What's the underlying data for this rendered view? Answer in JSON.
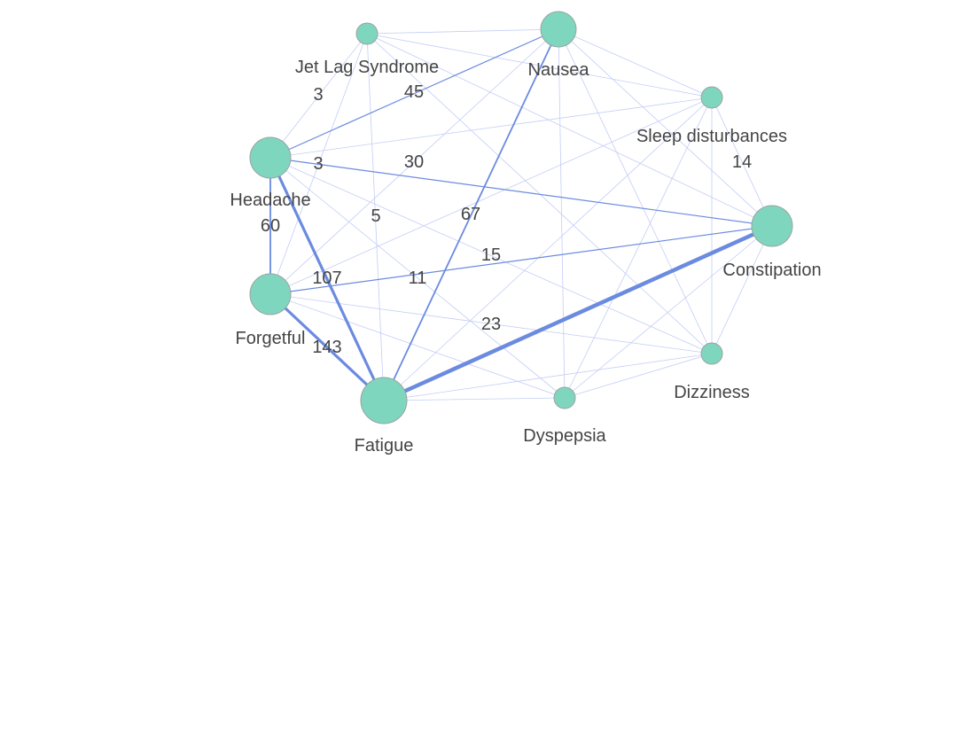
{
  "colors": {
    "node_fill": "#7fd6be",
    "node_stroke": "#9aa3a0",
    "edge_strong": "#6b8be0",
    "edge_weak": "#c3cdf5",
    "label_text": "#444444",
    "background": "#ffffff"
  },
  "graph": {
    "nodes": [
      {
        "id": "jetlag",
        "label": "Jet Lag Syndrome",
        "size": "small"
      },
      {
        "id": "nausea",
        "label": "Nausea",
        "size": "medium"
      },
      {
        "id": "sleep",
        "label": "Sleep disturbances",
        "size": "small"
      },
      {
        "id": "headache",
        "label": "Headache",
        "size": "large"
      },
      {
        "id": "constipation",
        "label": "Constipation",
        "size": "large"
      },
      {
        "id": "forgetful",
        "label": "Forgetful",
        "size": "large"
      },
      {
        "id": "dizziness",
        "label": "Dizziness",
        "size": "small"
      },
      {
        "id": "dyspepsia",
        "label": "Dyspepsia",
        "size": "small"
      },
      {
        "id": "fatigue",
        "label": "Fatigue",
        "size": "xlarge"
      }
    ],
    "edges": [
      {
        "source": "fatigue",
        "target": "constipation",
        "weight": 143,
        "label": "143",
        "strength": "strong"
      },
      {
        "source": "forgetful",
        "target": "fatigue",
        "weight": 107,
        "label": "107",
        "strength": "strong"
      },
      {
        "source": "headache",
        "target": "fatigue",
        "weight": 107,
        "label": "",
        "strength": "strong"
      },
      {
        "source": "fatigue",
        "target": "nausea",
        "weight": 67,
        "label": "67",
        "strength": "medium"
      },
      {
        "source": "headache",
        "target": "forgetful",
        "weight": 60,
        "label": "60",
        "strength": "medium"
      },
      {
        "source": "headache",
        "target": "nausea",
        "weight": 45,
        "label": "45",
        "strength": "medium"
      },
      {
        "source": "headache",
        "target": "constipation",
        "weight": 30,
        "label": "30",
        "strength": "medium"
      },
      {
        "source": "forgetful",
        "target": "constipation",
        "weight": 15,
        "label": "15",
        "strength": "medium"
      },
      {
        "source": "forgetful",
        "target": "dizziness",
        "weight": 23,
        "label": "23",
        "strength": "weak"
      },
      {
        "source": "jetlag",
        "target": "headache",
        "weight": 3,
        "label": "3",
        "strength": "weak"
      },
      {
        "source": "headache",
        "target": "sleep",
        "weight": 3,
        "label": "3",
        "strength": "weak"
      },
      {
        "source": "jetlag",
        "target": "fatigue",
        "weight": 5,
        "label": "5",
        "strength": "weak"
      },
      {
        "source": "headache",
        "target": "dyspepsia",
        "weight": 11,
        "label": "11",
        "strength": "weak"
      },
      {
        "source": "sleep",
        "target": "constipation",
        "weight": 14,
        "label": "14",
        "strength": "weak"
      },
      {
        "source": "jetlag",
        "target": "nausea",
        "weight": 1,
        "label": "",
        "strength": "weak"
      },
      {
        "source": "jetlag",
        "target": "sleep",
        "weight": 1,
        "label": "",
        "strength": "weak"
      },
      {
        "source": "jetlag",
        "target": "constipation",
        "weight": 1,
        "label": "",
        "strength": "weak"
      },
      {
        "source": "jetlag",
        "target": "dizziness",
        "weight": 1,
        "label": "",
        "strength": "weak"
      },
      {
        "source": "jetlag",
        "target": "forgetful",
        "weight": 1,
        "label": "",
        "strength": "weak"
      },
      {
        "source": "nausea",
        "target": "sleep",
        "weight": 1,
        "label": "",
        "strength": "weak"
      },
      {
        "source": "nausea",
        "target": "constipation",
        "weight": 1,
        "label": "",
        "strength": "weak"
      },
      {
        "source": "nausea",
        "target": "dyspepsia",
        "weight": 1,
        "label": "",
        "strength": "weak"
      },
      {
        "source": "nausea",
        "target": "dizziness",
        "weight": 1,
        "label": "",
        "strength": "weak"
      },
      {
        "source": "nausea",
        "target": "forgetful",
        "weight": 1,
        "label": "",
        "strength": "weak"
      },
      {
        "source": "sleep",
        "target": "dizziness",
        "weight": 1,
        "label": "",
        "strength": "weak"
      },
      {
        "source": "sleep",
        "target": "dyspepsia",
        "weight": 1,
        "label": "",
        "strength": "weak"
      },
      {
        "source": "sleep",
        "target": "fatigue",
        "weight": 1,
        "label": "",
        "strength": "weak"
      },
      {
        "source": "sleep",
        "target": "forgetful",
        "weight": 1,
        "label": "",
        "strength": "weak"
      },
      {
        "source": "headache",
        "target": "dizziness",
        "weight": 1,
        "label": "",
        "strength": "weak"
      },
      {
        "source": "constipation",
        "target": "dizziness",
        "weight": 1,
        "label": "",
        "strength": "weak"
      },
      {
        "source": "constipation",
        "target": "dyspepsia",
        "weight": 1,
        "label": "",
        "strength": "weak"
      },
      {
        "source": "forgetful",
        "target": "dyspepsia",
        "weight": 1,
        "label": "",
        "strength": "weak"
      },
      {
        "source": "fatigue",
        "target": "dyspepsia",
        "weight": 1,
        "label": "",
        "strength": "weak"
      },
      {
        "source": "fatigue",
        "target": "dizziness",
        "weight": 1,
        "label": "",
        "strength": "weak"
      },
      {
        "source": "dyspepsia",
        "target": "dizziness",
        "weight": 1,
        "label": "",
        "strength": "weak"
      }
    ]
  }
}
